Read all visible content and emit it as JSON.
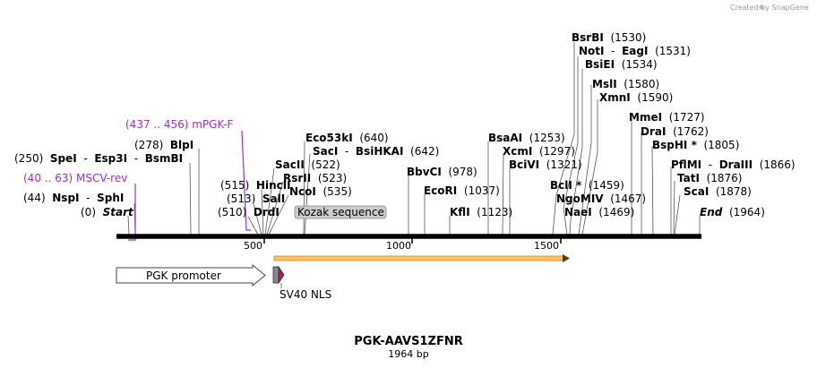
{
  "watermark": "Created by SnapGene",
  "title": "PGK-AAVS1ZFNR",
  "subtitle": "1964 bp",
  "sequence_length": 1964,
  "ticks": [
    "500",
    "1000",
    "1500"
  ],
  "colors": {
    "primer": "#9933cc",
    "orf": "#f5c36a",
    "nls": "#b0185c",
    "backbone": "#000000"
  },
  "features": {
    "promoter": "PGK promoter",
    "kozak": "Kozak sequence",
    "nls": "SV40 NLS"
  },
  "primers": [
    {
      "name": "(437 .. 456)  mPGK-F"
    },
    {
      "name": "(40 .. 63)  MSCV-rev"
    }
  ],
  "labels": [
    {
      "parts": [
        [
          "",
          "(0)  "
        ],
        [
          "b",
          "Start"
        ]
      ],
      "italic": true
    },
    {
      "parts": [
        [
          "",
          "(44)  "
        ],
        [
          "b",
          "NspI"
        ],
        [
          "",
          "  -  "
        ],
        [
          "b",
          "SphI"
        ]
      ]
    },
    {
      "parts": [
        [
          "",
          "(250)  "
        ],
        [
          "b",
          "SpeI"
        ],
        [
          "",
          "  -  "
        ],
        [
          "b",
          "Esp3I"
        ],
        [
          "",
          "  -  "
        ],
        [
          "b",
          "BsmBI"
        ]
      ]
    },
    {
      "parts": [
        [
          "",
          "(278)  "
        ],
        [
          "b",
          "BlpI"
        ]
      ]
    },
    {
      "parts": [
        [
          "",
          "(515)  "
        ],
        [
          "b",
          "HincII"
        ]
      ]
    },
    {
      "parts": [
        [
          "",
          "(513)  "
        ],
        [
          "b",
          "SalI"
        ]
      ]
    },
    {
      "parts": [
        [
          "",
          "(510)  "
        ],
        [
          "b",
          "DrdI"
        ]
      ]
    },
    {
      "parts": [
        [
          "b",
          "SacII"
        ],
        [
          "",
          "  (522)"
        ]
      ]
    },
    {
      "parts": [
        [
          "b",
          "RsrII"
        ],
        [
          "",
          "  (523)"
        ]
      ]
    },
    {
      "parts": [
        [
          "b",
          "NcoI"
        ],
        [
          "",
          "  (535)"
        ]
      ]
    },
    {
      "parts": [
        [
          "b",
          "Eco53kI"
        ],
        [
          "",
          "  (640)"
        ]
      ]
    },
    {
      "parts": [
        [
          "b",
          "SacI"
        ],
        [
          "",
          "  -  "
        ],
        [
          "b",
          "BsiHKAI"
        ],
        [
          "",
          "  (642)"
        ]
      ]
    },
    {
      "parts": [
        [
          "b",
          "BbvCI"
        ],
        [
          "",
          "  (978)"
        ]
      ]
    },
    {
      "parts": [
        [
          "b",
          "EcoRI"
        ],
        [
          "",
          "  (1037)"
        ]
      ]
    },
    {
      "parts": [
        [
          "b",
          "KflI"
        ],
        [
          "",
          "  (1123)"
        ]
      ]
    },
    {
      "parts": [
        [
          "b",
          "BsaAI"
        ],
        [
          "",
          "  (1253)"
        ]
      ]
    },
    {
      "parts": [
        [
          "b",
          "XcmI"
        ],
        [
          "",
          "  (1297)"
        ]
      ]
    },
    {
      "parts": [
        [
          "b",
          "BciVI"
        ],
        [
          "",
          "  (1321)"
        ]
      ]
    },
    {
      "parts": [
        [
          "b",
          "BclI *"
        ],
        [
          "",
          "  (1459)"
        ]
      ]
    },
    {
      "parts": [
        [
          "b",
          "NgoMIV"
        ],
        [
          "",
          "  (1467)"
        ]
      ]
    },
    {
      "parts": [
        [
          "b",
          "NaeI"
        ],
        [
          "",
          "  (1469)"
        ]
      ]
    },
    {
      "parts": [
        [
          "b",
          "BsrBI"
        ],
        [
          "",
          "  (1530)"
        ]
      ]
    },
    {
      "parts": [
        [
          "b",
          "NotI"
        ],
        [
          "",
          "  -  "
        ],
        [
          "b",
          "EagI"
        ],
        [
          "",
          "  (1531)"
        ]
      ]
    },
    {
      "parts": [
        [
          "b",
          "BsiEI"
        ],
        [
          "",
          "  (1534)"
        ]
      ]
    },
    {
      "parts": [
        [
          "b",
          "MslI"
        ],
        [
          "",
          "  (1580)"
        ]
      ]
    },
    {
      "parts": [
        [
          "b",
          "XmnI"
        ],
        [
          "",
          "  (1590)"
        ]
      ]
    },
    {
      "parts": [
        [
          "b",
          "MmeI"
        ],
        [
          "",
          "  (1727)"
        ]
      ]
    },
    {
      "parts": [
        [
          "b",
          "DraI"
        ],
        [
          "",
          "  (1762)"
        ]
      ]
    },
    {
      "parts": [
        [
          "b",
          "BspHI *"
        ],
        [
          "",
          "  (1805)"
        ]
      ]
    },
    {
      "parts": [
        [
          "b",
          "PflMI"
        ],
        [
          "",
          "  -  "
        ],
        [
          "b",
          "DraIII"
        ],
        [
          "",
          "  (1866)"
        ]
      ]
    },
    {
      "parts": [
        [
          "b",
          "TatI"
        ],
        [
          "",
          "  (1876)"
        ]
      ]
    },
    {
      "parts": [
        [
          "b",
          "ScaI"
        ],
        [
          "",
          "  (1878)"
        ]
      ]
    },
    {
      "parts": [
        [
          "b",
          "End"
        ],
        [
          "",
          "  (1964)"
        ]
      ],
      "italic": true
    }
  ]
}
